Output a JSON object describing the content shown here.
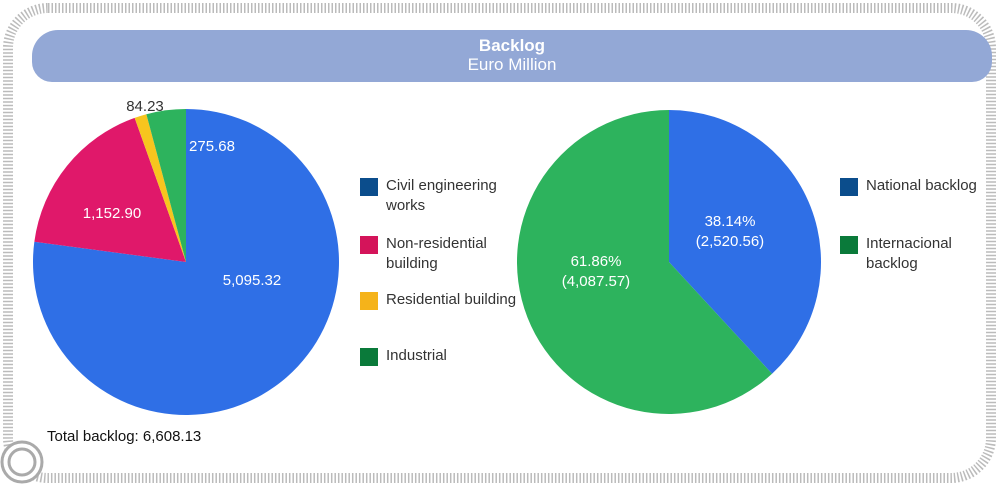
{
  "title": "Backlog",
  "subtitle": "Euro Million",
  "footnote": "Total backlog: 6,608.13",
  "chart_data": [
    {
      "type": "pie",
      "categories": [
        "Civil engineering works",
        "Non-residential building",
        "Residential building",
        "Industrial"
      ],
      "values": [
        5095.32,
        1152.9,
        84.23,
        275.68
      ],
      "value_labels": [
        "5,095.32",
        "1,152.90",
        "84.23",
        "275.68"
      ],
      "colors": [
        "#2f6fe6",
        "#e0186a",
        "#f7c51e",
        "#2db35d"
      ],
      "legend_colors": [
        "#0b4d8c",
        "#d4145a",
        "#f5b31a",
        "#0a7a3a"
      ]
    },
    {
      "type": "pie",
      "categories": [
        "National backlog",
        "Internacional backlog"
      ],
      "values": [
        2520.56,
        4087.57
      ],
      "value_labels": [
        "(2,520.56)",
        "(4,087.57)"
      ],
      "percentages": [
        38.14,
        61.86
      ],
      "percentage_labels": [
        "38.14%",
        "61.86%"
      ],
      "colors": [
        "#2f6fe6",
        "#2db35d"
      ],
      "legend_colors": [
        "#0b4d8c",
        "#0a7a3a"
      ]
    }
  ]
}
